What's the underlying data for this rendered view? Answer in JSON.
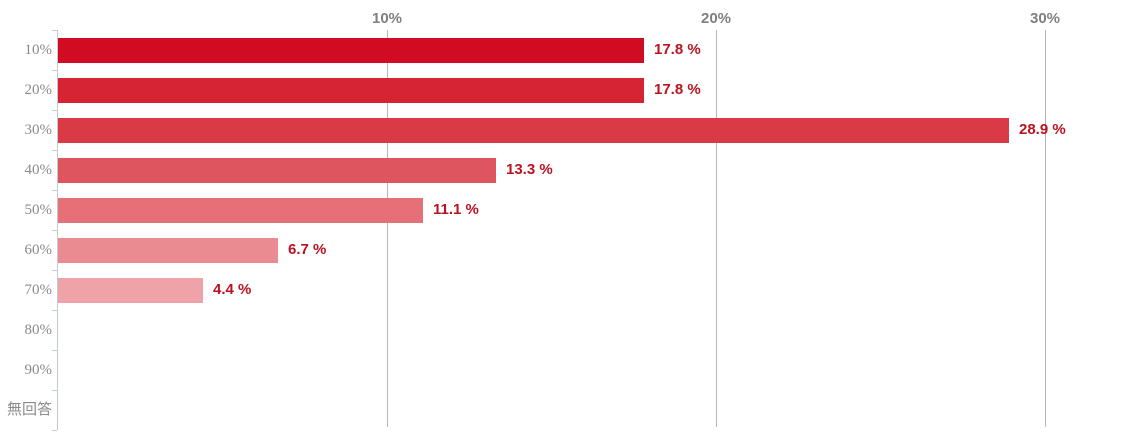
{
  "chart_data": {
    "type": "bar",
    "orientation": "horizontal",
    "title": "",
    "categories": [
      "10%",
      "20%",
      "30%",
      "40%",
      "50%",
      "60%",
      "70%",
      "80%",
      "90%",
      "無回答"
    ],
    "values": [
      17.8,
      17.8,
      28.9,
      13.3,
      11.1,
      6.7,
      4.4,
      0,
      0,
      0
    ],
    "value_labels": [
      "17.8 %",
      "17.8 %",
      "28.9 %",
      "13.3 %",
      "11.1 %",
      "6.7 %",
      "4.4 %",
      "",
      "",
      ""
    ],
    "bar_colors": [
      "#d10c22",
      "#d62433",
      "#da3a46",
      "#de5560",
      "#e57077",
      "#ea8b91",
      "#efa3a8",
      "",
      "",
      ""
    ],
    "x_axis": {
      "position": "top",
      "ticks": [
        10,
        20,
        30
      ],
      "tick_labels": [
        "10%",
        "20%",
        "30%"
      ],
      "range": [
        0,
        33
      ]
    },
    "grid": true,
    "legend": false,
    "colors": {
      "value_label": "#bb1120",
      "x_tick_label": "#7f7f7f",
      "category_label": "#8b8b8b",
      "grid_line": "#b5b5b5",
      "axis_line": "#c2cbd2",
      "background": "#ffffff"
    }
  }
}
